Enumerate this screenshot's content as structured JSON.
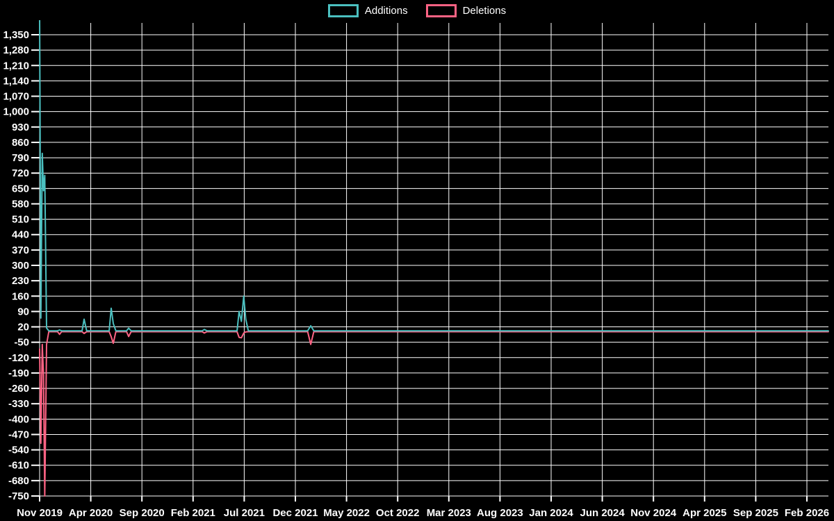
{
  "legend": {
    "items": [
      {
        "label": "Additions",
        "color": "#4bc0c0"
      },
      {
        "label": "Deletions",
        "color": "#ff6384"
      }
    ]
  },
  "colors": {
    "background": "#000000",
    "grid": "#ffffff",
    "text": "#ffffff",
    "additions": "#4bc0c0",
    "deletions": "#ff6384"
  },
  "chart_data": {
    "type": "line",
    "title": "",
    "xlabel": "",
    "ylabel": "",
    "legend_position": "top-center",
    "grid": true,
    "x_unit": "months since Nov 2019",
    "x_tick_interval_months": 5,
    "x_tick_labels": [
      "Nov 2019",
      "Apr 2020",
      "Sep 2020",
      "Feb 2021",
      "Jul 2021",
      "Dec 2021",
      "May 2022",
      "Oct 2022",
      "Mar 2023",
      "Aug 2023",
      "Jan 2024",
      "Jun 2024",
      "Nov 2024",
      "Apr 2025",
      "Sep 2025",
      "Feb 2026"
    ],
    "y_ticks": {
      "min": -750,
      "max": 1350,
      "step": 70
    },
    "y_tick_labels": [
      "1,350",
      "1,280",
      "1,210",
      "1,140",
      "1,070",
      "1,000",
      "930",
      "860",
      "790",
      "720",
      "650",
      "580",
      "510",
      "440",
      "370",
      "300",
      "230",
      "160",
      "90",
      "20",
      "-50",
      "-120",
      "-190",
      "-260",
      "-330",
      "-400",
      "-470",
      "-540",
      "-610",
      "-680",
      "-750"
    ],
    "ylim_plot": [
      -750,
      1415
    ],
    "x": [
      0,
      0.12,
      0.26,
      0.38,
      0.5,
      0.68,
      0.9,
      1.75,
      1.95,
      2.15,
      4.15,
      4.35,
      4.6,
      6.8,
      7.0,
      7.2,
      7.45,
      8.5,
      8.7,
      8.95,
      15.9,
      16.1,
      16.35,
      19.3,
      19.5,
      19.72,
      19.95,
      20.15,
      20.4,
      26.2,
      26.5,
      26.8,
      77.1
    ],
    "series": [
      {
        "name": "Additions",
        "color": "#4bc0c0",
        "values": [
          1450,
          60,
          810,
          640,
          710,
          15,
          2,
          2,
          6,
          2,
          2,
          55,
          2,
          2,
          105,
          35,
          2,
          2,
          14,
          2,
          2,
          8,
          2,
          2,
          90,
          45,
          160,
          55,
          2,
          2,
          25,
          2,
          2
        ]
      },
      {
        "name": "Deletions",
        "color": "#ff6384",
        "values": [
          -80,
          -510,
          -60,
          -200,
          -750,
          -60,
          -2,
          -2,
          -14,
          -2,
          -2,
          -10,
          -2,
          -2,
          -25,
          -55,
          -2,
          -2,
          -24,
          -2,
          -2,
          -8,
          -2,
          -2,
          -28,
          -30,
          -8,
          -3,
          -2,
          -2,
          -60,
          -2,
          -2
        ]
      }
    ],
    "annotations": [
      "Additions spike at Nov 2019 is clipped above the 1,350 axis maximum"
    ]
  }
}
